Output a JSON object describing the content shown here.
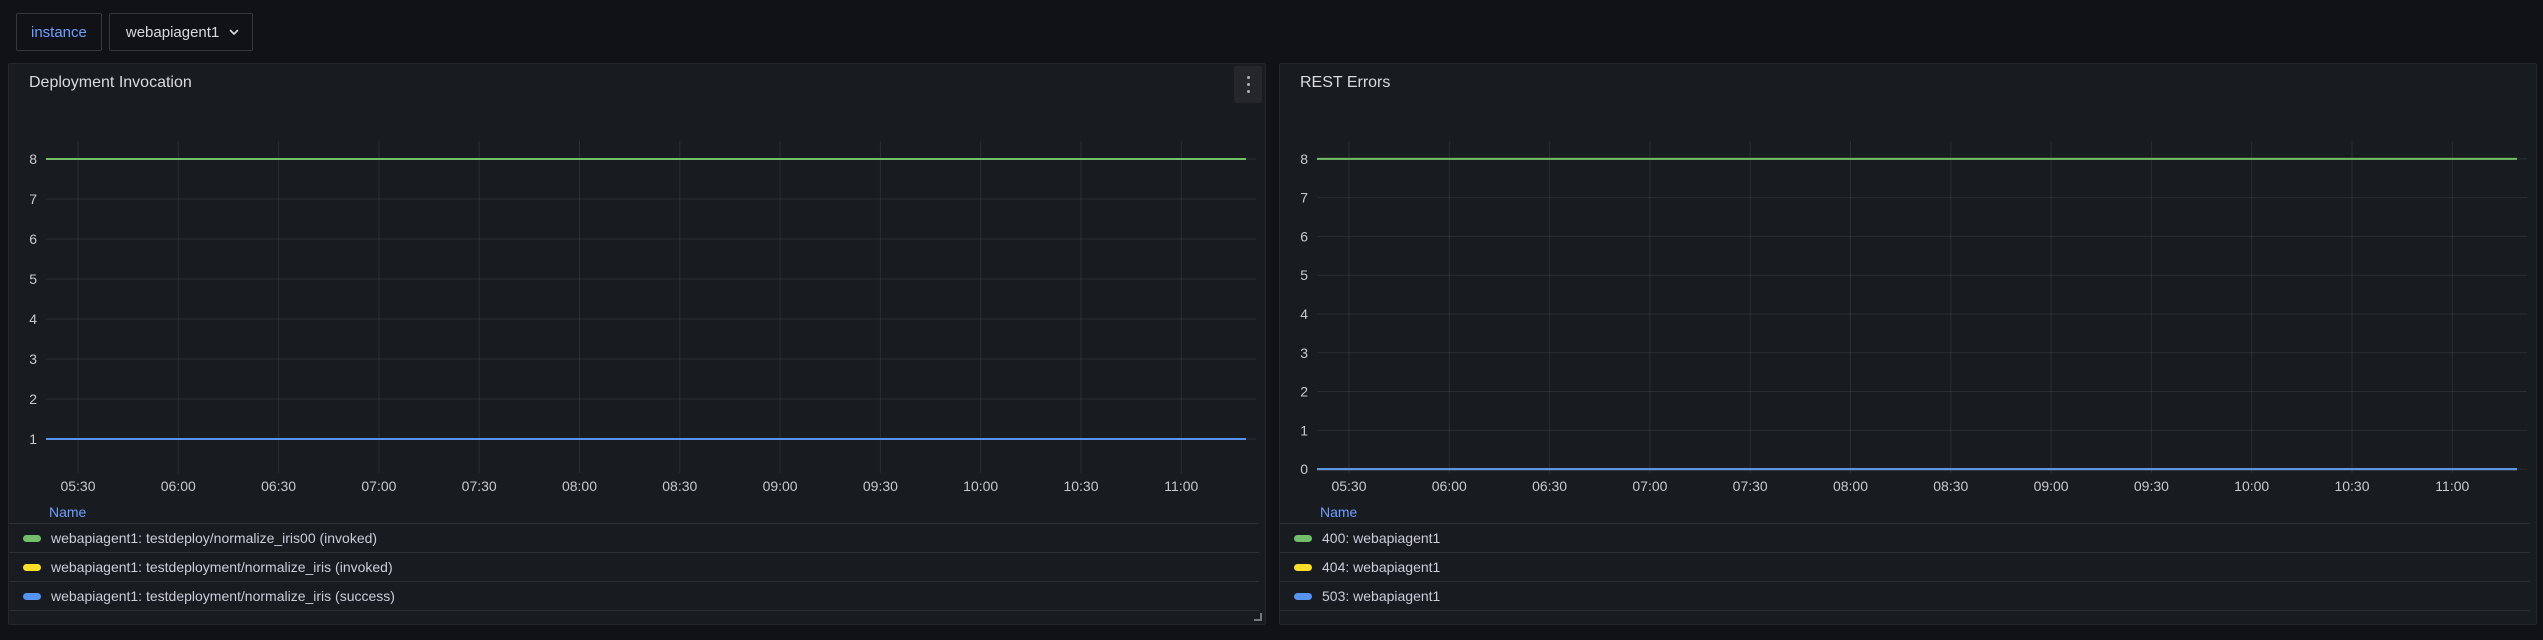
{
  "toolbar": {
    "variable_label": "instance",
    "variable_value": "webapiagent1"
  },
  "colors": {
    "page_bg": "#111217",
    "panel_bg": "#181b1f",
    "green": "#73BF69",
    "yellow": "#FADE2A",
    "blue": "#5794F2",
    "legend_link": "#6E9FFF"
  },
  "panels": [
    {
      "title": "Deployment Invocation",
      "chart_data": {
        "type": "line",
        "title": "Deployment Invocation",
        "legend_header": "Name",
        "x_ticks": [
          "05:30",
          "06:00",
          "06:30",
          "07:00",
          "07:30",
          "08:00",
          "08:30",
          "09:00",
          "09:30",
          "10:00",
          "10:30",
          "11:00"
        ],
        "y_ticks": [
          1,
          2,
          3,
          4,
          5,
          6,
          7,
          8
        ],
        "ylim": [
          0.15,
          8.45
        ],
        "grid": true,
        "legend_position": "bottom",
        "series": [
          {
            "name": "webapiagent1: testdeploy/normalize_iris00 (invoked)",
            "color": "#73BF69",
            "value": 8
          },
          {
            "name": "webapiagent1: testdeployment/normalize_iris (invoked)",
            "color": "#FADE2A",
            "value": 1
          },
          {
            "name": "webapiagent1: testdeployment/normalize_iris (success)",
            "color": "#5794F2",
            "value": 1
          }
        ]
      }
    },
    {
      "title": "REST Errors",
      "chart_data": {
        "type": "line",
        "title": "REST Errors",
        "legend_header": "Name",
        "x_ticks": [
          "05:30",
          "06:00",
          "06:30",
          "07:00",
          "07:30",
          "08:00",
          "08:30",
          "09:00",
          "09:30",
          "10:00",
          "10:30",
          "11:00"
        ],
        "y_ticks": [
          0,
          1,
          2,
          3,
          4,
          5,
          6,
          7,
          8
        ],
        "ylim": [
          -0.1,
          8.46
        ],
        "grid": true,
        "legend_position": "bottom",
        "series": [
          {
            "name": "400: webapiagent1",
            "color": "#73BF69",
            "value": 8
          },
          {
            "name": "404: webapiagent1",
            "color": "#FADE2A",
            "value": 0
          },
          {
            "name": "503: webapiagent1",
            "color": "#5794F2",
            "value": 0
          }
        ]
      }
    }
  ]
}
